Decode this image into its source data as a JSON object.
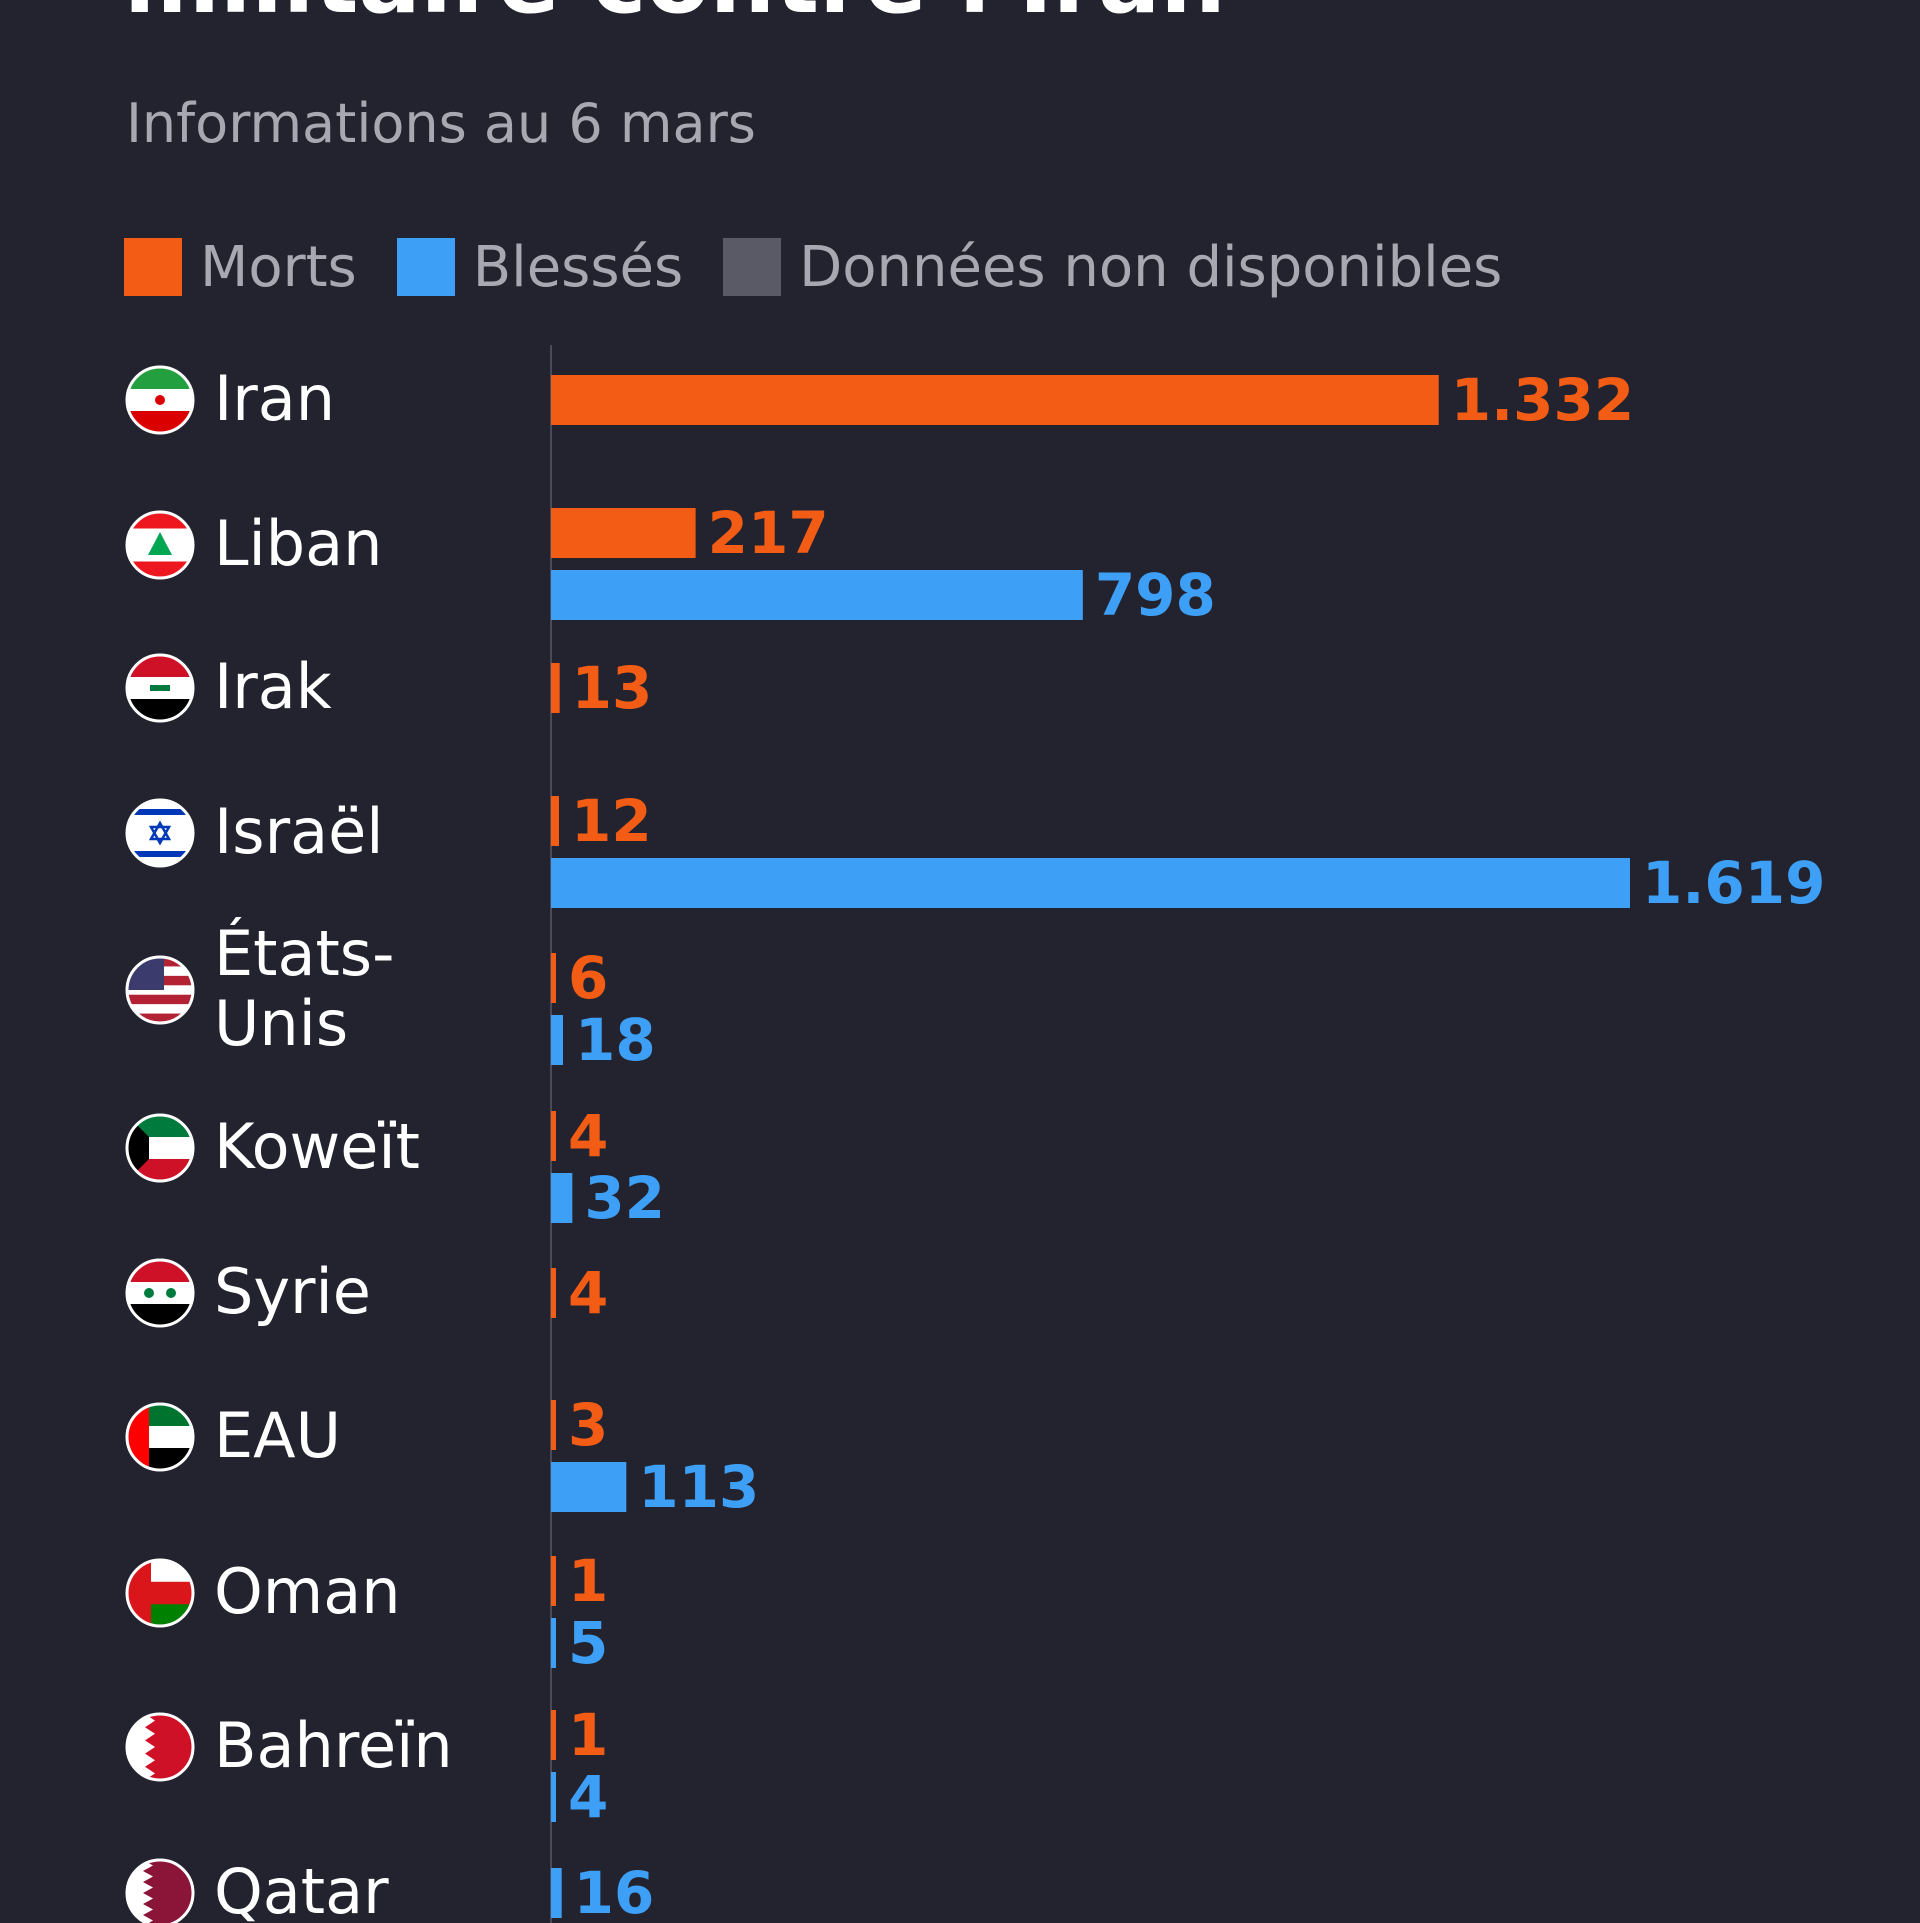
{
  "chart_data": {
    "type": "bar",
    "orientation": "horizontal",
    "title": "militaire contre l'Iran",
    "subtitle": "Informations au 6 mars",
    "legend": [
      {
        "label": "Morts",
        "color": "#f25c15"
      },
      {
        "label": "Blessés",
        "color": "#3d9ff5"
      },
      {
        "label": "Données non disponibles",
        "color": "#5a5a66"
      }
    ],
    "series": [
      {
        "name": "Morts",
        "color": "#f25c15"
      },
      {
        "name": "Blessés",
        "color": "#3d9ff5"
      }
    ],
    "xlim": [
      0,
      1619
    ],
    "rows": [
      {
        "country": "Iran",
        "flag": "iran-flag-icon",
        "killed": 1332,
        "killed_label": "1.332",
        "injured": null,
        "injured_label": ""
      },
      {
        "country": "Liban",
        "flag": "lebanon-flag-icon",
        "killed": 217,
        "killed_label": "217",
        "injured": 798,
        "injured_label": "798"
      },
      {
        "country": "Irak",
        "flag": "iraq-flag-icon",
        "killed": 13,
        "killed_label": "13",
        "injured": null,
        "injured_label": ""
      },
      {
        "country": "Israël",
        "flag": "israel-flag-icon",
        "killed": 12,
        "killed_label": "12",
        "injured": 1619,
        "injured_label": "1.619"
      },
      {
        "country": "États-Unis",
        "flag": "usa-flag-icon",
        "killed": 6,
        "killed_label": "6",
        "injured": 18,
        "injured_label": "18"
      },
      {
        "country": "Koweït",
        "flag": "kuwait-flag-icon",
        "killed": 4,
        "killed_label": "4",
        "injured": 32,
        "injured_label": "32"
      },
      {
        "country": "Syrie",
        "flag": "syria-flag-icon",
        "killed": 4,
        "killed_label": "4",
        "injured": null,
        "injured_label": ""
      },
      {
        "country": "EAU",
        "flag": "uae-flag-icon",
        "killed": 3,
        "killed_label": "3",
        "injured": 113,
        "injured_label": "113"
      },
      {
        "country": "Oman",
        "flag": "oman-flag-icon",
        "killed": 1,
        "killed_label": "1",
        "injured": 5,
        "injured_label": "5"
      },
      {
        "country": "Bahreïn",
        "flag": "bahrain-flag-icon",
        "killed": 1,
        "killed_label": "1",
        "injured": 4,
        "injured_label": "4"
      },
      {
        "country": "Qatar",
        "flag": "qatar-flag-icon",
        "killed": null,
        "killed_label": "",
        "injured": 16,
        "injured_label": "16"
      }
    ]
  }
}
